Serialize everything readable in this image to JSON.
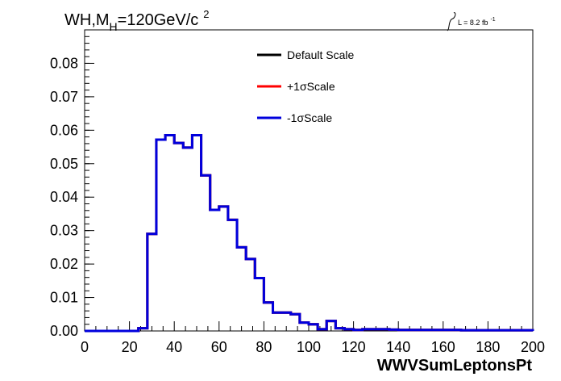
{
  "chart_data": {
    "type": "line",
    "title": {
      "prefix": "WH,M",
      "sub": "H",
      "main": "=120GeV/c",
      "sup": "2"
    },
    "lumi": {
      "text": "L = 8.2 fb",
      "sup": "-1"
    },
    "xlabel": "WWVSumLeptonsPt",
    "ylabel": "",
    "xlim": [
      0,
      200
    ],
    "ylim": [
      0,
      0.09
    ],
    "xticks": [
      {
        "value": 0,
        "label": "0"
      },
      {
        "value": 20,
        "label": "20"
      },
      {
        "value": 40,
        "label": "40"
      },
      {
        "value": 60,
        "label": "60"
      },
      {
        "value": 80,
        "label": "80"
      },
      {
        "value": 100,
        "label": "100"
      },
      {
        "value": 120,
        "label": "120"
      },
      {
        "value": 140,
        "label": "140"
      },
      {
        "value": 160,
        "label": "160"
      },
      {
        "value": 180,
        "label": "180"
      },
      {
        "value": 200,
        "label": "200"
      }
    ],
    "yticks": [
      {
        "value": 0,
        "label": "0.00"
      },
      {
        "value": 0.01,
        "label": "0.01"
      },
      {
        "value": 0.02,
        "label": "0.02"
      },
      {
        "value": 0.03,
        "label": "0.03"
      },
      {
        "value": 0.04,
        "label": "0.04"
      },
      {
        "value": 0.05,
        "label": "0.05"
      },
      {
        "value": 0.06,
        "label": "0.06"
      },
      {
        "value": 0.07,
        "label": "0.07"
      },
      {
        "value": 0.08,
        "label": "0.08"
      }
    ],
    "bin_edges": [
      0,
      4,
      8,
      12,
      16,
      20,
      24,
      28,
      32,
      36,
      40,
      44,
      48,
      52,
      56,
      60,
      64,
      68,
      72,
      76,
      80,
      84,
      88,
      92,
      96,
      100,
      104,
      108,
      112,
      116,
      120,
      124,
      128,
      132,
      136,
      140,
      144,
      148,
      152,
      156,
      160,
      164,
      168,
      172,
      176,
      180,
      184,
      188,
      192,
      196,
      200
    ],
    "legend_position": "top-center",
    "series": [
      {
        "name": "Default Scale",
        "color": "#000000",
        "values": [
          0,
          0,
          0,
          0,
          0,
          0,
          0.0008,
          0.029,
          0.0572,
          0.0585,
          0.0562,
          0.0548,
          0.0585,
          0.0465,
          0.0362,
          0.0372,
          0.0332,
          0.025,
          0.0215,
          0.0158,
          0.0085,
          0.0055,
          0.0055,
          0.005,
          0.0025,
          0.002,
          0.0005,
          0.003,
          0.0008,
          0.0005,
          0.0003,
          0.0005,
          0.0005,
          0.0005,
          0.0004,
          0.0003,
          0.0003,
          0.0003,
          0.0003,
          0.0003,
          0.0003,
          0.0003,
          0.0002,
          0.0002,
          0.0002,
          0.0002,
          0.0002,
          0.0002,
          0.0002,
          0.0002
        ]
      },
      {
        "name": "+1σScale",
        "color": "#ff0000",
        "values": [
          0,
          0,
          0,
          0,
          0,
          0,
          0.0008,
          0.029,
          0.0572,
          0.0585,
          0.0562,
          0.0548,
          0.0585,
          0.0465,
          0.0362,
          0.0372,
          0.0332,
          0.025,
          0.0215,
          0.0158,
          0.0085,
          0.0055,
          0.0055,
          0.005,
          0.0025,
          0.002,
          0.0005,
          0.003,
          0.0008,
          0.0005,
          0.0003,
          0.0005,
          0.0005,
          0.0005,
          0.0004,
          0.0003,
          0.0003,
          0.0003,
          0.0003,
          0.0003,
          0.0003,
          0.0003,
          0.0002,
          0.0002,
          0.0002,
          0.0002,
          0.0002,
          0.0002,
          0.0002,
          0.0002
        ]
      },
      {
        "name": "-1σScale",
        "color": "#0000dd",
        "values": [
          0,
          0,
          0,
          0,
          0,
          0,
          0.0008,
          0.029,
          0.0572,
          0.0585,
          0.0562,
          0.0548,
          0.0585,
          0.0465,
          0.0362,
          0.0372,
          0.0332,
          0.025,
          0.0215,
          0.0158,
          0.0085,
          0.0055,
          0.0055,
          0.005,
          0.0025,
          0.002,
          0.0005,
          0.003,
          0.0008,
          0.0005,
          0.0003,
          0.0005,
          0.0005,
          0.0005,
          0.0004,
          0.0003,
          0.0003,
          0.0003,
          0.0003,
          0.0003,
          0.0003,
          0.0003,
          0.0002,
          0.0002,
          0.0002,
          0.0002,
          0.0002,
          0.0002,
          0.0002,
          0.0002
        ]
      }
    ]
  }
}
